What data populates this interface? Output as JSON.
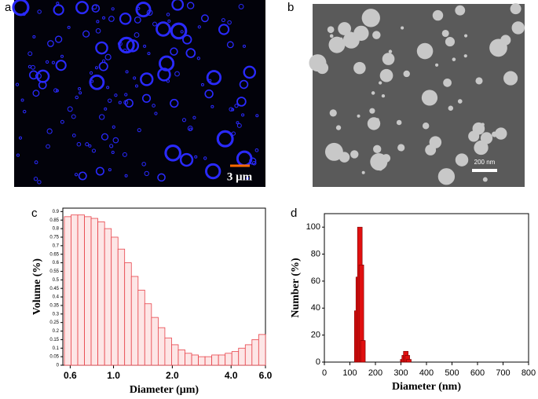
{
  "images": [
    {
      "label": "a",
      "scale_bar": "3 μm"
    },
    {
      "label": "b",
      "scale_bar": "200 nm"
    }
  ],
  "chart_data": [
    {
      "type": "histogram",
      "label": "c",
      "x_label": "Diameter (μm)",
      "y_label": "Volume (%)",
      "xscale": "log",
      "color": "#e8434a",
      "bins": [
        0.56,
        0.606,
        0.656,
        0.71,
        0.768,
        0.831,
        0.9,
        0.974,
        1.054,
        1.14,
        1.234,
        1.336,
        1.445,
        1.564,
        1.693,
        1.832,
        1.983,
        2.146,
        2.322,
        2.513,
        2.72,
        2.943,
        3.185,
        3.447,
        3.731,
        4.037,
        4.369,
        4.729,
        5.117,
        5.538,
        6.0
      ],
      "values": [
        0.87,
        0.88,
        0.88,
        0.87,
        0.86,
        0.84,
        0.8,
        0.75,
        0.68,
        0.6,
        0.52,
        0.44,
        0.36,
        0.28,
        0.22,
        0.16,
        0.12,
        0.09,
        0.07,
        0.06,
        0.05,
        0.05,
        0.06,
        0.06,
        0.07,
        0.08,
        0.1,
        0.12,
        0.15,
        0.18
      ],
      "xlim": [
        0.55,
        6.0
      ],
      "xticks": [
        0.6,
        {
          "value": 1,
          "label": "1.0"
        },
        {
          "value": 2,
          "label": "2.0"
        },
        {
          "value": 4,
          "label": "4.0"
        },
        {
          "value": 6,
          "label": "6.0"
        }
      ],
      "ylim": [
        0,
        0.92
      ],
      "yticks": [
        0,
        0.05,
        0.1,
        0.15,
        0.2,
        0.25,
        0.3,
        0.35,
        0.4,
        0.45,
        0.5,
        0.55,
        0.6,
        0.65,
        0.7,
        0.75,
        0.8,
        0.85,
        0.9
      ]
    },
    {
      "type": "bar",
      "label": "d",
      "x_label": "Diameter (nm)",
      "y_label": "Number (%)",
      "color": "#e01010",
      "x": [
        127,
        133,
        139,
        145,
        151,
        307,
        313,
        319,
        325,
        331
      ],
      "values": [
        38,
        63,
        100,
        72,
        16,
        2,
        5,
        8,
        5,
        2
      ],
      "xlim": [
        0,
        800
      ],
      "xticks": [
        0,
        100,
        200,
        300,
        400,
        500,
        600,
        700,
        800
      ],
      "ylim": [
        0,
        110
      ],
      "yticks": [
        0,
        20,
        40,
        60,
        80,
        100
      ]
    }
  ]
}
